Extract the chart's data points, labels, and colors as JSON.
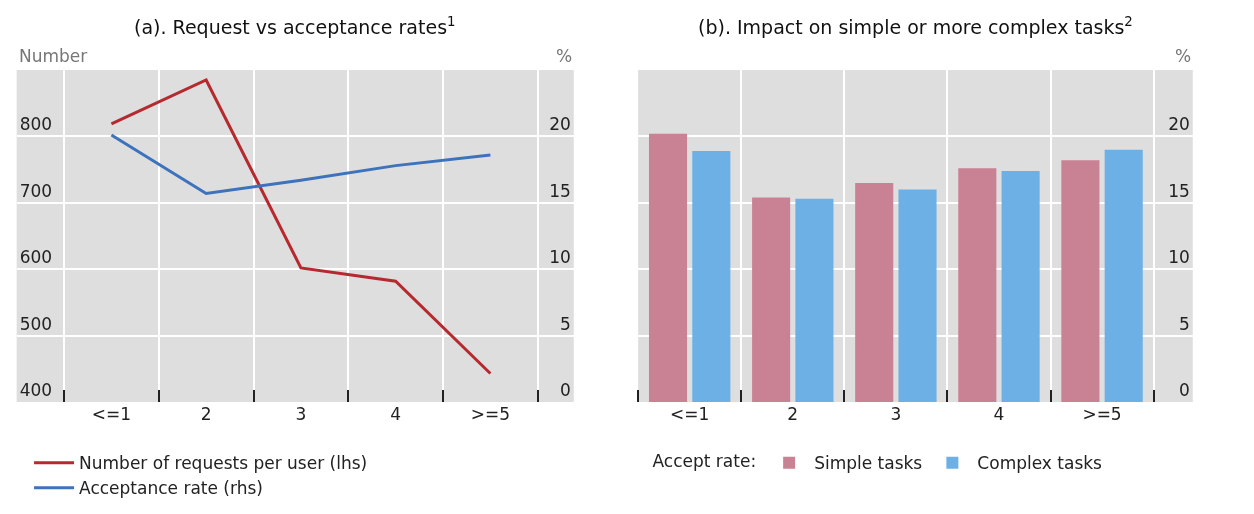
{
  "chart_data": [
    {
      "type": "line",
      "title": "(a). Request vs acceptance rates$^{1}$",
      "ylabel": "Number",
      "y2label": "%",
      "categories": [
        "<=1",
        "2",
        "3",
        "4",
        ">=5"
      ],
      "series": [
        {
          "name": "Number of requests per user (lhs)",
          "color": "#b5292f",
          "values": [
            819,
            885,
            602,
            582,
            443
          ]
        },
        {
          "name": "Acceptance rate (rhs)",
          "color": "#3d72bd",
          "values": [
            20.1,
            15.7,
            16.7,
            17.8,
            18.6
          ],
          "axis": "y2"
        }
      ],
      "ylim": [
        400,
        900
      ],
      "yticks": [
        400,
        500,
        600,
        700,
        800
      ],
      "y2lim": [
        0,
        25
      ],
      "y2ticks": [
        0,
        5,
        10,
        15,
        20
      ],
      "grid": true,
      "legend": "bottom",
      "marker": "none",
      "line_style": "solid"
    },
    {
      "type": "bar",
      "title": "(b). Impact on simple or more complex tasks$^{2}$",
      "y2label": "%",
      "legend_title": "Accept rate:",
      "categories": [
        "<=1",
        "2",
        "3",
        "4",
        ">=5"
      ],
      "series": [
        {
          "name": "Simple tasks",
          "color": "#c98194",
          "values": [
            20.2,
            15.4,
            16.5,
            17.6,
            18.2
          ],
          "axis": "y2"
        },
        {
          "name": "Complex tasks",
          "color": "#6cb0e6",
          "values": [
            18.9,
            15.3,
            16.0,
            17.4,
            19.0
          ],
          "axis": "y2"
        }
      ],
      "y2lim": [
        0,
        25
      ],
      "y2ticks": [
        0,
        5,
        10,
        15,
        20
      ],
      "grid": true,
      "legend": "bottom"
    }
  ]
}
